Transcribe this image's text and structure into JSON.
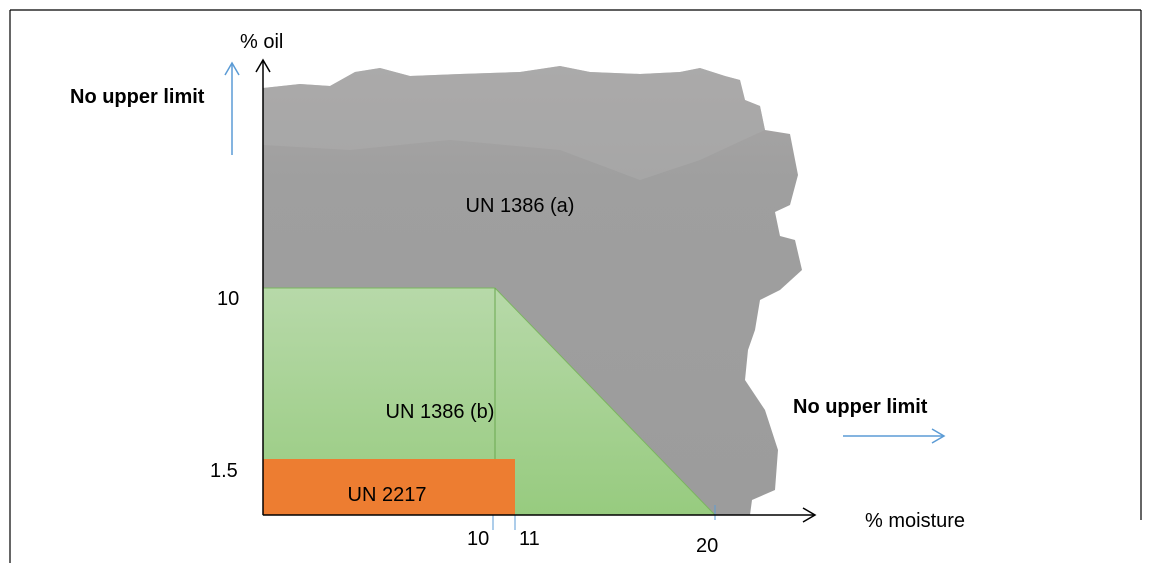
{
  "axes": {
    "y_label": "% oil",
    "x_label": "% moisture",
    "y_ticks": [
      10,
      1.5
    ],
    "x_ticks": [
      10,
      11,
      20
    ]
  },
  "regions": [
    {
      "label": "UN 1386 (a)"
    },
    {
      "label": "UN 1386 (b)"
    },
    {
      "label": "UN 2217"
    }
  ],
  "notes": {
    "y_note": "No upper limit",
    "x_note": "No upper limit"
  }
}
